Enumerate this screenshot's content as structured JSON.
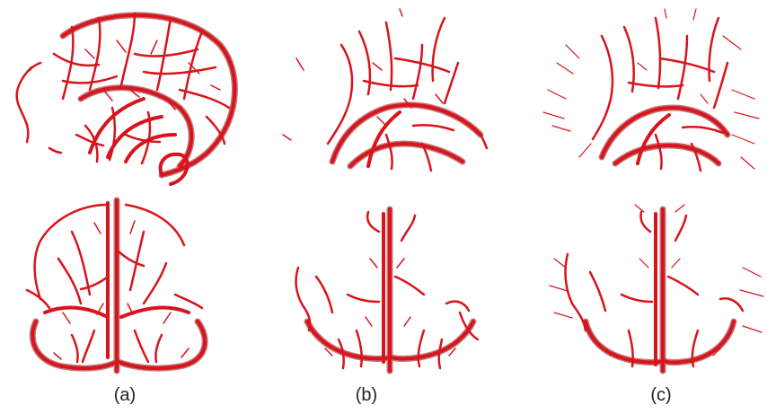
{
  "figure": {
    "captions": {
      "a": "(a)",
      "b": "(b)",
      "c": "(c)"
    },
    "vessel_color": "#d8141c",
    "vessel_dark_color": "#8e0a10",
    "background_color": "#ffffff"
  }
}
